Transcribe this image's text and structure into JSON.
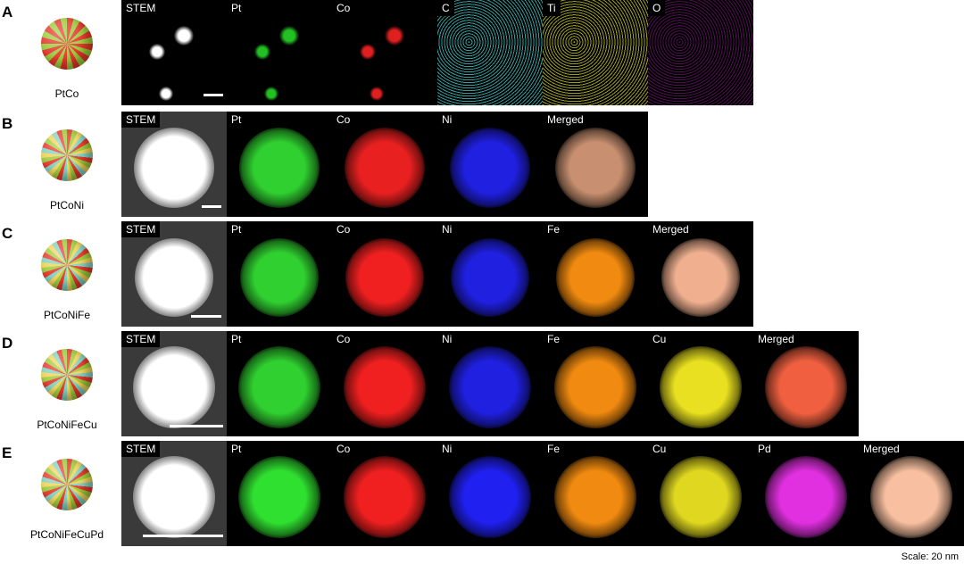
{
  "rows": [
    {
      "letter": "A",
      "label": "PtCo",
      "panels": [
        {
          "label": "STEM",
          "color": "#ffffff"
        },
        {
          "label": "Pt",
          "color": "#22c022"
        },
        {
          "label": "Co",
          "color": "#e02020"
        },
        {
          "label": "C",
          "color": "#3cb8b8"
        },
        {
          "label": "Ti",
          "color": "#b8b820"
        },
        {
          "label": "O",
          "color": "#a020a0"
        }
      ]
    },
    {
      "letter": "B",
      "label": "PtCoNi",
      "panels": [
        {
          "label": "STEM",
          "color": "#ffffff"
        },
        {
          "label": "Pt",
          "color": "#30d030"
        },
        {
          "label": "Co",
          "color": "#e82020"
        },
        {
          "label": "Ni",
          "color": "#2020e0"
        },
        {
          "label": "Merged",
          "color": "#c89070"
        }
      ]
    },
    {
      "letter": "C",
      "label": "PtCoNiFe",
      "panels": [
        {
          "label": "STEM",
          "color": "#ffffff"
        },
        {
          "label": "Pt",
          "color": "#30d030"
        },
        {
          "label": "Co",
          "color": "#f02020"
        },
        {
          "label": "Ni",
          "color": "#2020e0"
        },
        {
          "label": "Fe",
          "color": "#f08a10"
        },
        {
          "label": "Merged",
          "color": "#f0b090"
        }
      ]
    },
    {
      "letter": "D",
      "label": "PtCoNiFeCu",
      "panels": [
        {
          "label": "STEM",
          "color": "#ffffff"
        },
        {
          "label": "Pt",
          "color": "#30d030"
        },
        {
          "label": "Co",
          "color": "#f02020"
        },
        {
          "label": "Ni",
          "color": "#2020e0"
        },
        {
          "label": "Fe",
          "color": "#f08a10"
        },
        {
          "label": "Cu",
          "color": "#e8e020"
        },
        {
          "label": "Merged",
          "color": "#f06040"
        }
      ]
    },
    {
      "letter": "E",
      "label": "PtCoNiFeCuPd",
      "panels": [
        {
          "label": "STEM",
          "color": "#ffffff"
        },
        {
          "label": "Pt",
          "color": "#30e030"
        },
        {
          "label": "Co",
          "color": "#f02020"
        },
        {
          "label": "Ni",
          "color": "#2020f0"
        },
        {
          "label": "Fe",
          "color": "#f08a10"
        },
        {
          "label": "Cu",
          "color": "#e0d820"
        },
        {
          "label": "Pd",
          "color": "#e030e0"
        },
        {
          "label": "Merged",
          "color": "#f8c0a0"
        }
      ]
    }
  ],
  "scale": "Scale: 20 nm"
}
